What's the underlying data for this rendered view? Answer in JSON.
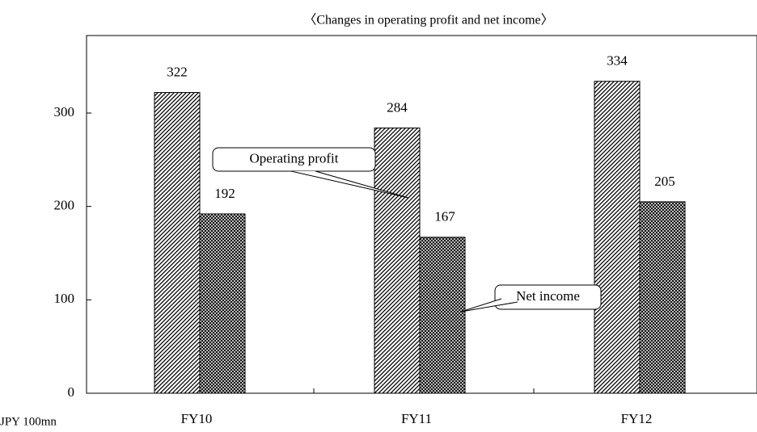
{
  "chart_data": {
    "type": "bar",
    "title": "〈Changes in operating profit and net income〉",
    "y_unit": "JPY 100mn",
    "categories": [
      "FY10",
      "FY11",
      "FY12"
    ],
    "series": [
      {
        "name": "Operating profit",
        "color": "#000000",
        "values": [
          322,
          284,
          334
        ]
      },
      {
        "name": "Net income",
        "color": "#000000",
        "values": [
          192,
          167,
          205
        ]
      }
    ],
    "ylim": [
      0,
      383
    ],
    "yticks": [
      0,
      100,
      200,
      300
    ],
    "grid": false
  }
}
